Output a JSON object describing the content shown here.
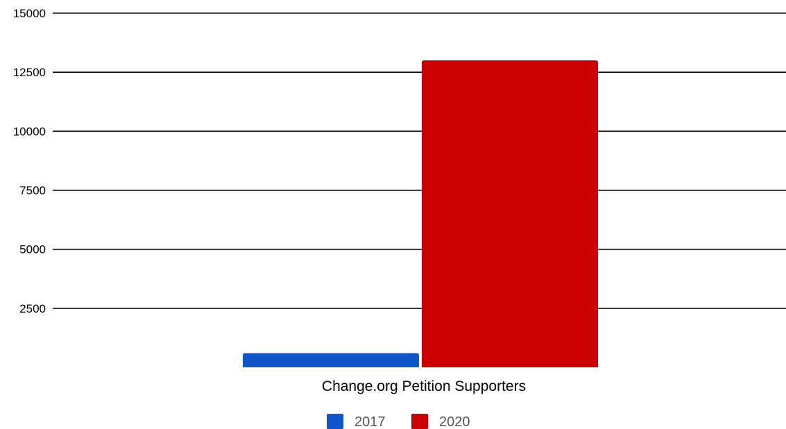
{
  "chart_data": {
    "type": "bar",
    "categories": [
      "Change.org Petition Supporters"
    ],
    "series": [
      {
        "name": "2017",
        "values": [
          600
        ],
        "color": "#1155cc"
      },
      {
        "name": "2020",
        "values": [
          13000
        ],
        "color": "#cc0000"
      }
    ],
    "ylim": [
      0,
      15000
    ],
    "yticks": [
      2500,
      5000,
      7500,
      10000,
      12500,
      15000
    ],
    "grid": true,
    "legend": "bottom"
  }
}
